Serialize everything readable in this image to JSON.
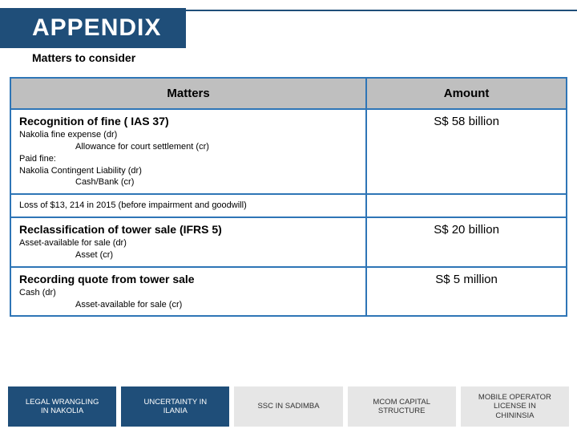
{
  "header": {
    "title": "APPENDIX",
    "subtitle": "Matters to consider"
  },
  "table": {
    "headers": {
      "matters": "Matters",
      "amount": "Amount"
    },
    "rows": [
      {
        "title": "Recognition of fine ( IAS 37)",
        "lines": [
          "Nakolia fine expense (dr)",
          "Allowance for court settlement (cr)",
          "Paid fine:",
          "Nakolia Contingent Liability (dr)",
          "Cash/Bank (cr)"
        ],
        "footnote": "Loss of $13, 214 in 2015 (before impairment and goodwill)",
        "amount": "S$ 58 billion"
      },
      {
        "title": "Reclassification of tower sale (IFRS 5)",
        "lines": [
          "Asset-available for sale (dr)",
          "Asset (cr)"
        ],
        "amount": "S$ 20 billion"
      },
      {
        "title": "Recording quote from tower sale",
        "lines": [
          "Cash (dr)",
          "Asset-available for sale (cr)"
        ],
        "amount": "S$ 5 million"
      }
    ]
  },
  "tabs": [
    {
      "label": "LEGAL WRANGLING\nIN NAKOLIA",
      "active": true
    },
    {
      "label": "UNCERTAINTY IN\nILANIA",
      "active": true
    },
    {
      "label": "SSC IN SADIMBA",
      "active": false
    },
    {
      "label": "MCOM CAPITAL\nSTRUCTURE",
      "active": false
    },
    {
      "label": "MOBILE OPERATOR\nLICENSE IN\nCHININSIA",
      "active": false
    }
  ],
  "colors": {
    "brand": "#1f4e79",
    "tableBorder": "#2e75b6",
    "headerFill": "#bfbfbf",
    "tabInactive": "#e6e6e6"
  }
}
